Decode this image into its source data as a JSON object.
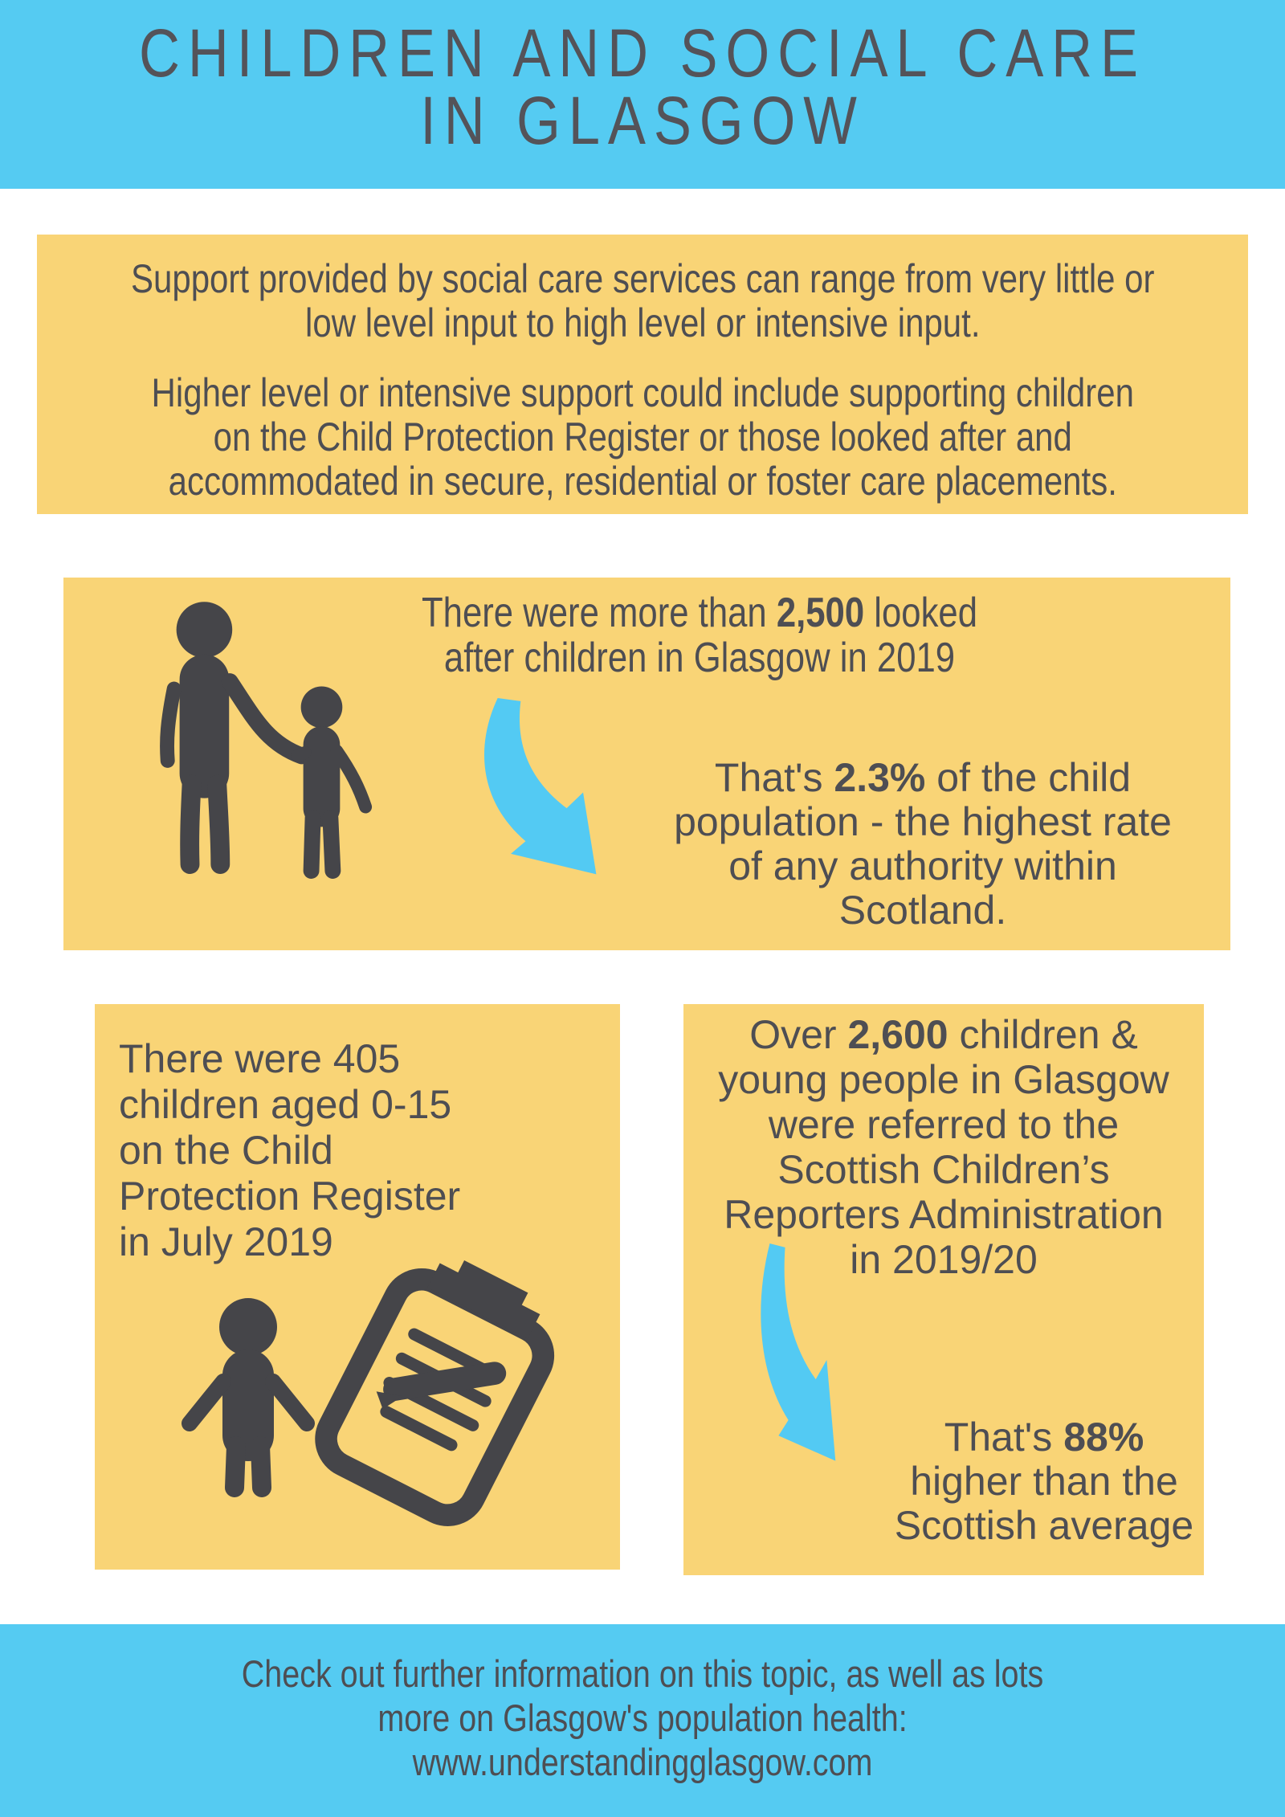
{
  "colors": {
    "banner_blue": "#55CBF2",
    "panel_yellow": "#F9D476",
    "text_dark": "#4E4E53",
    "icon_dark": "#454549",
    "arrow_blue": "#53CAF3"
  },
  "header": {
    "title": "CHILDREN AND SOCIAL CARE\nIN GLASGOW"
  },
  "intro": {
    "paragraph1": "Support provided by social care services can range from very little or\nlow level input to high level or intensive input.",
    "paragraph2": "Higher level or intensive support could include supporting children\non the Child Protection Register or those looked after and\naccommodated in secure, residential or foster care placements."
  },
  "looked_after": {
    "heading_segments": [
      {
        "t": "There were more than "
      },
      {
        "t": "2,500",
        "b": true
      },
      {
        "t": " looked\nafter children in Glasgow in 2019"
      }
    ],
    "detail_segments": [
      {
        "t": "That's "
      },
      {
        "t": "2.3%",
        "b": true
      },
      {
        "t": " of the child\npopulation - the highest rate\nof any authority within\nScotland."
      }
    ],
    "icons": {
      "figures": "adult-child-icon",
      "arrow": "curved-arrow-icon"
    }
  },
  "register": {
    "text": "There were 405\nchildren aged 0-15\non the Child\nProtection Register\nin July 2019",
    "icons": {
      "child": "child-icon",
      "clipboard": "clipboard-icon"
    }
  },
  "referrals": {
    "heading_segments": [
      {
        "t": "Over "
      },
      {
        "t": "2,600",
        "b": true
      },
      {
        "t": " children &\nyoung people in Glasgow\nwere referred to the\nScottish Children’s\nReporters Administration\nin 2019/20"
      }
    ],
    "detail_segments": [
      {
        "t": "That's "
      },
      {
        "t": "88%",
        "b": true
      },
      {
        "t": "\nhigher than the\nScottish average"
      }
    ],
    "icons": {
      "arrow": "curved-arrow-icon"
    }
  },
  "footer": {
    "text": "Check out further information on this topic, as well as lots\nmore on Glasgow's population health:\nwww.understandingglasgow.com"
  }
}
